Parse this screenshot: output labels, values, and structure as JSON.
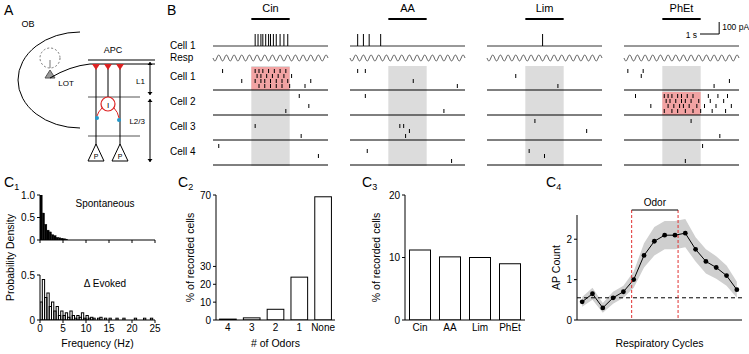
{
  "panels": [
    {
      "letter": "A"
    },
    {
      "letter": "B"
    },
    {
      "letter": "C",
      "sub": "1"
    },
    {
      "letter": "C",
      "sub": "2"
    },
    {
      "letter": "C",
      "sub": "3"
    },
    {
      "letter": "C",
      "sub": "4"
    }
  ],
  "diagram": {
    "ob": "OB",
    "apc": "APC",
    "lot": "LOT",
    "interneuron": "I",
    "pyramidal": "P",
    "layer1": "L1",
    "layer23": "L2/3"
  },
  "recording": {
    "trace_label": "Cell 1",
    "resp_label": "Resp",
    "cell_labels": [
      "Cell 1",
      "Cell 2",
      "Cell 3",
      "Cell 4"
    ],
    "time_window_s": [
      0,
      6
    ],
    "resp_frequency_hz": 2.5,
    "scale_bar": {
      "time_s": 1,
      "time_label": "1 s",
      "current_label": "100 pA"
    },
    "odors": [
      {
        "name": "Cin",
        "odor_on_s": 2,
        "odor_off_s": 4,
        "trace_spikes_s": [
          2.2,
          2.35,
          2.5,
          2.6,
          2.75,
          2.9,
          3.0,
          3.15,
          3.3,
          3.5,
          3.7,
          3.9
        ],
        "cells": [
          {
            "responsive": true,
            "trials": [
              [
                0.5,
                2.2,
                2.4,
                2.6,
                2.9,
                3.2,
                3.5,
                3.8
              ],
              [
                2.3,
                2.5,
                2.8,
                3.1,
                3.4,
                3.7,
                4.1
              ],
              [
                1.5,
                2.2,
                2.5,
                2.7,
                3.0,
                3.3,
                3.6,
                3.9,
                5.1
              ],
              [
                2.4,
                2.7,
                3.0,
                3.3,
                3.6,
                4.0,
                4.8
              ]
            ]
          },
          {
            "responsive": false,
            "trials": [
              [
                4.5
              ],
              [],
              [
                5.0
              ],
              [
                3.8
              ]
            ]
          },
          {
            "responsive": false,
            "trials": [
              [],
              [
                2.2
              ],
              [],
              [
                4.6
              ]
            ]
          },
          {
            "responsive": false,
            "trials": [
              [
                0.3
              ],
              [],
              [
                5.5
              ],
              []
            ]
          }
        ]
      },
      {
        "name": "AA",
        "odor_on_s": 2,
        "odor_off_s": 4,
        "trace_spikes_s": [
          0.4,
          0.7,
          1.0,
          1.6
        ],
        "cells": [
          {
            "responsive": false,
            "trials": [
              [
                0.4,
                0.8
              ],
              [],
              [
                3.3
              ],
              [
                5.6
              ]
            ]
          },
          {
            "responsive": false,
            "trials": [
              [
                0.8
              ],
              [],
              [],
              [
                4.9
              ]
            ]
          },
          {
            "responsive": false,
            "trials": [
              [],
              [
                2.6,
                2.8
              ],
              [
                3.1
              ],
              [
                2.9
              ]
            ]
          },
          {
            "responsive": false,
            "trials": [
              [],
              [
                0.9
              ],
              [],
              [
                5.3
              ]
            ]
          }
        ]
      },
      {
        "name": "Lim",
        "odor_on_s": 2,
        "odor_off_s": 4,
        "trace_spikes_s": [
          2.9
        ],
        "cells": [
          {
            "responsive": false,
            "trials": [
              [],
              [
                1.5
              ],
              [],
              [
                3.7
              ]
            ]
          },
          {
            "responsive": false,
            "trials": [
              [],
              [],
              [],
              []
            ]
          },
          {
            "responsive": false,
            "trials": [
              [
                2.5
              ],
              [],
              [
                5.2
              ],
              []
            ]
          },
          {
            "responsive": false,
            "trials": [
              [],
              [
                2.2
              ],
              [
                3.0
              ],
              []
            ]
          }
        ]
      },
      {
        "name": "PhEt",
        "odor_on_s": 2,
        "odor_off_s": 4,
        "trace_spikes_s": [],
        "cells": [
          {
            "responsive": false,
            "trials": [
              [
                0.2,
                1.0
              ],
              [
                0.9
              ],
              [
                5.5
              ],
              [
                4.7
              ]
            ]
          },
          {
            "responsive": true,
            "trials": [
              [
                0.6,
                2.1,
                2.3,
                2.5,
                2.8,
                3.0,
                3.3,
                3.6,
                4.4,
                4.9,
                5.4
              ],
              [
                2.2,
                2.4,
                2.7,
                3.0,
                3.2,
                3.5,
                3.9,
                4.5,
                5.2
              ],
              [
                1.4,
                2.3,
                2.6,
                2.9,
                3.1,
                3.4,
                3.8,
                4.2,
                4.8,
                5.6
              ],
              [
                2.1,
                2.5,
                2.8,
                3.2,
                3.6,
                4.0,
                4.6,
                5.3
              ]
            ]
          },
          {
            "responsive": false,
            "trials": [
              [
                3.5
              ],
              [],
              [],
              [
                5.0
              ]
            ]
          },
          {
            "responsive": false,
            "trials": [
              [
                4.1
              ],
              [],
              [],
              [
                3.2
              ]
            ]
          }
        ]
      }
    ]
  },
  "chart_data": [
    {
      "type": "histogram",
      "title": "Spontaneous",
      "ylabel": "Probability Density",
      "color": "#000000",
      "bins": [
        0,
        0.5,
        1,
        1.5,
        2,
        2.5,
        3,
        3.5,
        4,
        4.5,
        5,
        5.5,
        6
      ],
      "counts": [
        1.0,
        0.6,
        0.35,
        0.22,
        0.18,
        0.12,
        0.1,
        0.06,
        0.05,
        0.04,
        0.03,
        0.02
      ],
      "xlim": [
        0,
        25
      ],
      "xticks": [
        0,
        5,
        10,
        15,
        20,
        25
      ],
      "ylim": [
        0,
        1
      ],
      "yticks": [
        0,
        0.5,
        {
          "value": 1,
          "label": "1.0"
        }
      ],
      "tick_labels": "y"
    },
    {
      "type": "histogram",
      "title": "Δ Evoked",
      "xlabel": "Frequency (Hz)",
      "color": "#000000",
      "line_style": "step",
      "bins": [
        0,
        0.5,
        1,
        1.5,
        2,
        2.5,
        3,
        3.5,
        4,
        4.5,
        5,
        5.5,
        6,
        6.5,
        7,
        7.5,
        8,
        8.5,
        9,
        9.5,
        10,
        10.5,
        11,
        11.5,
        12,
        12.5,
        13,
        13.5,
        14,
        14.5,
        15,
        15.5,
        16,
        16.5,
        17,
        17.5,
        18,
        18.5,
        19,
        19.5,
        20,
        20.5,
        21,
        21.5,
        22,
        22.5,
        23,
        23.5,
        24,
        24.5,
        25
      ],
      "counts": [
        0.2,
        0.45,
        0.25,
        0.3,
        0.15,
        0.2,
        0.1,
        0.15,
        0.05,
        0.1,
        0.05,
        0.08,
        0.03,
        0.1,
        0.05,
        0.02,
        0.05,
        0.03,
        0.08,
        0.02,
        0.05,
        0.02,
        0.03,
        0.02,
        0,
        0.02,
        0.03,
        0,
        0.02,
        0,
        0.02,
        0,
        0,
        0.02,
        0,
        0,
        0.02,
        0,
        0,
        0,
        0,
        0.02,
        0,
        0,
        0,
        0.02,
        0,
        0,
        0.02,
        0
      ],
      "xlim": [
        0,
        25
      ],
      "xticks": [
        0,
        5,
        10,
        15,
        20,
        25
      ],
      "ylim": [
        0,
        0.5
      ],
      "yticks": [
        0,
        0.5
      ]
    },
    {
      "type": "bar",
      "xlabel": "# of Odors",
      "ylabel": "% of recorded cells",
      "color": "#ffffff",
      "categories": [
        "4",
        "3",
        "2",
        "1",
        "None"
      ],
      "values": [
        0.5,
        1.2,
        6,
        24,
        69
      ],
      "ylim": [
        0,
        70
      ],
      "yticks": [
        0,
        10,
        20,
        30,
        70
      ]
    },
    {
      "type": "bar",
      "ylabel": "% of recorded cells",
      "color": "#ffffff",
      "categories": [
        "Cin",
        "AA",
        "Lim",
        "PhEt"
      ],
      "values": [
        11.2,
        10.1,
        10.0,
        9.0
      ],
      "ylim": [
        0,
        20
      ],
      "yticks": [
        0,
        10,
        20
      ]
    },
    {
      "type": "line",
      "xlabel": "Respiratory Cycles",
      "ylabel": "AP Count",
      "color": "#000000",
      "marker": "circle",
      "tick_labels": "y",
      "x": [
        1,
        2,
        3,
        4,
        5,
        6,
        7,
        8,
        9,
        10,
        11,
        12,
        13,
        14,
        15,
        16
      ],
      "values": [
        0.45,
        0.65,
        0.3,
        0.55,
        0.7,
        1.0,
        1.6,
        1.95,
        2.1,
        2.1,
        2.15,
        1.75,
        1.45,
        1.3,
        1.1,
        0.75
      ],
      "errors": [
        0.12,
        0.15,
        0.12,
        0.15,
        0.15,
        0.2,
        0.3,
        0.35,
        0.35,
        0.35,
        0.35,
        0.3,
        0.3,
        0.28,
        0.25,
        0.2
      ],
      "baseline": 0.55,
      "odor_label": "Odor",
      "odor_onset": 5.8,
      "odor_offset": 10.3,
      "xlim": [
        0.5,
        16.5
      ],
      "ylim": [
        0,
        2.6
      ],
      "yticks": [
        0,
        1,
        2
      ]
    }
  ]
}
